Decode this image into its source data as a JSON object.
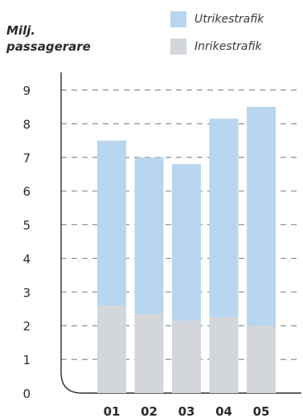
{
  "chart_data": {
    "type": "bar",
    "stacked": true,
    "categories": [
      "01",
      "02",
      "03",
      "04",
      "05"
    ],
    "series": [
      {
        "name": "Inrikestrafik",
        "values": [
          2.6,
          2.35,
          2.15,
          2.25,
          2.0
        ],
        "color": "#d3d6db"
      },
      {
        "name": "Utrikestrafik",
        "values": [
          4.9,
          4.65,
          4.65,
          5.9,
          6.5
        ],
        "color": "#b8d6ef"
      }
    ],
    "ylabel_lines": [
      "Milj.",
      "passagerare"
    ],
    "yticks": [
      0,
      1,
      2,
      3,
      4,
      5,
      6,
      7,
      8,
      9
    ],
    "ylim": [
      0,
      9
    ],
    "grid": true,
    "legend_position": "top-right"
  }
}
